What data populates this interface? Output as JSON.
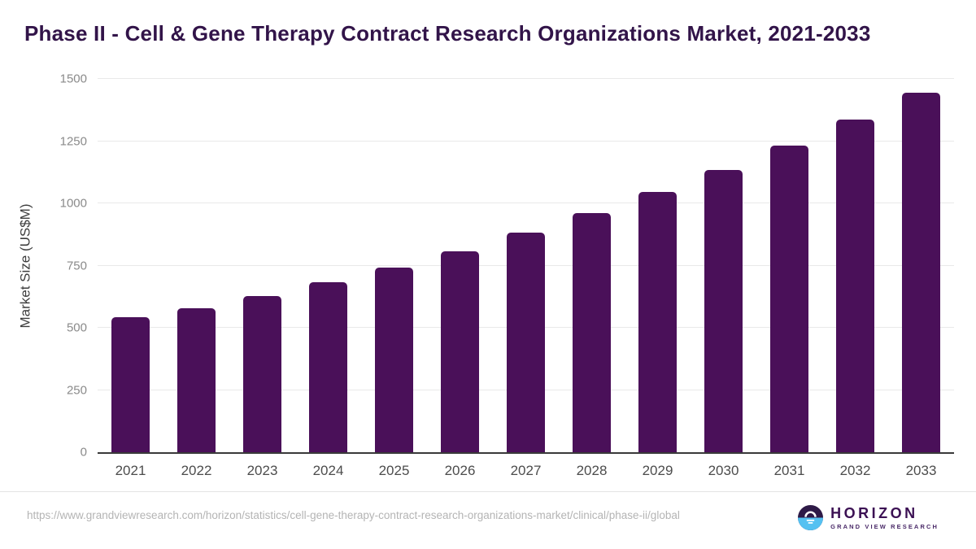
{
  "title": "Phase II - Cell & Gene Therapy Contract Research Organizations Market, 2021-2033",
  "chart_data": {
    "type": "bar",
    "title": "Phase II - Cell & Gene Therapy Contract Research Organizations Market, 2021-2033",
    "categories": [
      "2021",
      "2022",
      "2023",
      "2024",
      "2025",
      "2026",
      "2027",
      "2028",
      "2029",
      "2030",
      "2031",
      "2032",
      "2033"
    ],
    "values": [
      541,
      578,
      627,
      683,
      742,
      808,
      883,
      960,
      1045,
      1135,
      1233,
      1337,
      1446
    ],
    "xlabel": "",
    "ylabel": "Market Size (US$M)",
    "ylim": [
      0,
      1500
    ],
    "yticks": [
      0,
      250,
      500,
      750,
      1000,
      1250,
      1500
    ],
    "grid": true,
    "legend": "none",
    "bar_color": "#4a1059"
  },
  "colors": {
    "title_text": "#321449",
    "bar": "#4a1059",
    "gridline": "#e9e9e9",
    "axis_baseline": "#3a3a3a",
    "tick_text": "#8a8a8a",
    "x_label_text": "#4c4c4c",
    "url_text": "#b4b4b4",
    "logo_purple": "#3b1053",
    "logo_blue": "#55c1f1"
  },
  "footer": {
    "source_url": "https://www.grandviewresearch.com/horizon/statistics/cell-gene-therapy-contract-research-organizations-market/clinical/phase-ii/global",
    "logo": {
      "name": "HORIZON",
      "subtitle": "GRAND VIEW RESEARCH"
    }
  }
}
